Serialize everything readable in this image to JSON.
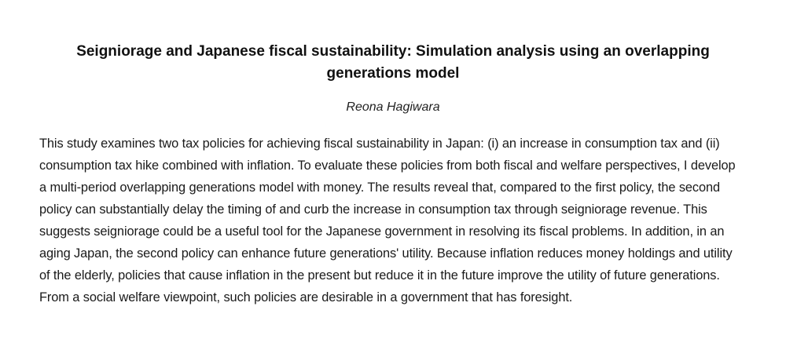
{
  "paper": {
    "title": "Seigniorage and Japanese fiscal sustainability: Simulation analysis using an overlapping generations model",
    "author": "Reona Hagiwara",
    "abstract": "This study examines two tax policies for achieving fiscal sustainability in Japan: (i) an increase in consumption tax and (ii) consumption tax hike combined with inflation. To evaluate these policies from both fiscal and welfare perspectives, I develop a multi-period overlapping generations model with money. The results reveal that, compared to the first policy, the second policy can substantially delay the timing of and curb the increase in consumption tax through seigniorage revenue. This suggests seigniorage could be a useful tool for the Japanese government in resolving its fiscal problems. In addition, in an aging Japan, the second policy can enhance future generations' utility. Because inflation reduces money holdings and utility of the elderly, policies that cause inflation in the present but reduce it in the future improve the utility of future generations. From a social welfare viewpoint, such policies are desirable in a government that has foresight."
  }
}
